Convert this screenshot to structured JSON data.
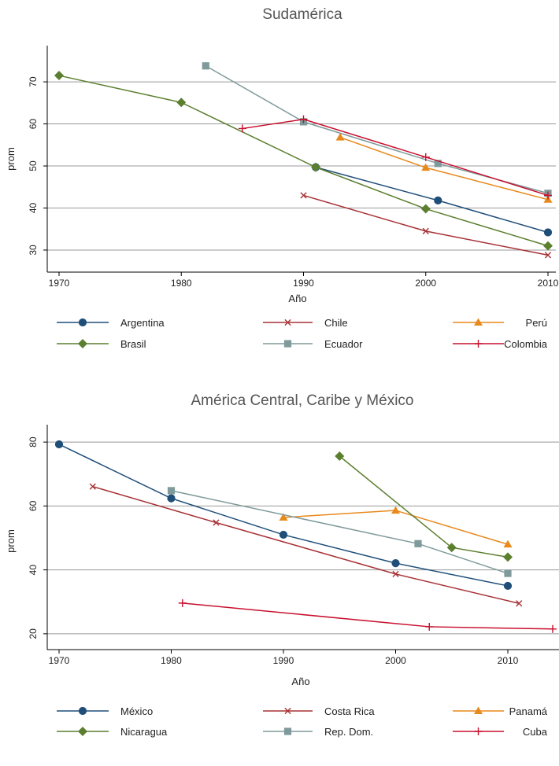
{
  "chart_data": [
    {
      "type": "line",
      "title": "Sudamérica",
      "xlabel": "Año",
      "ylabel": "prom",
      "xlim": [
        1970,
        2010
      ],
      "ylim": [
        27,
        76
      ],
      "xticks": [
        1970,
        1980,
        1990,
        2000,
        2010
      ],
      "yticks": [
        30,
        40,
        50,
        60,
        70
      ],
      "grid": "horizontal",
      "legend_position": "bottom",
      "series": [
        {
          "name": "Argentina",
          "color": "#1f4e79",
          "marker": "circle",
          "x": [
            1991,
            2001,
            2010
          ],
          "y": [
            49.7,
            41.8,
            34.2
          ]
        },
        {
          "name": "Chile",
          "color": "#a83236",
          "marker": "x",
          "x": [
            1990,
            2000,
            2010
          ],
          "y": [
            43.0,
            34.5,
            28.8
          ]
        },
        {
          "name": "Perú",
          "color": "#e8891c",
          "marker": "triangle",
          "x": [
            1993,
            2000,
            2010
          ],
          "y": [
            56.8,
            49.6,
            42.0
          ]
        },
        {
          "name": "Brasil",
          "color": "#5b7f2e",
          "marker": "diamond",
          "x": [
            1970,
            1980,
            1991,
            2000,
            2010
          ],
          "y": [
            71.5,
            65.1,
            49.7,
            39.8,
            31.0
          ]
        },
        {
          "name": "Ecuador",
          "color": "#7f9a9b",
          "marker": "square",
          "x": [
            1982,
            1990,
            2001,
            2010
          ],
          "y": [
            73.8,
            60.5,
            50.6,
            43.5
          ]
        },
        {
          "name": "Colombia",
          "color": "#c8102e",
          "marker": "plus",
          "x": [
            1985,
            1990,
            2000,
            2010
          ],
          "y": [
            58.9,
            61.1,
            52.1,
            43.0
          ]
        }
      ]
    },
    {
      "type": "line",
      "title": "América Central, Caribe y México",
      "xlabel": "Año",
      "ylabel": "prom",
      "xlim": [
        1970,
        2014
      ],
      "ylim": [
        18,
        82
      ],
      "xticks": [
        1970,
        1980,
        1990,
        2000,
        2010
      ],
      "yticks": [
        20,
        40,
        60,
        80
      ],
      "grid": "horizontal",
      "legend_position": "bottom",
      "series": [
        {
          "name": "México",
          "color": "#1f4e79",
          "marker": "circle",
          "x": [
            1970,
            1980,
            1990,
            2000,
            2010
          ],
          "y": [
            79.3,
            62.4,
            51.0,
            42.1,
            35.0
          ]
        },
        {
          "name": "Costa Rica",
          "color": "#a83236",
          "marker": "x",
          "x": [
            1973,
            1984,
            2000,
            2011
          ],
          "y": [
            66.1,
            54.8,
            38.7,
            29.5
          ]
        },
        {
          "name": "Panamá",
          "color": "#e8891c",
          "marker": "triangle",
          "x": [
            1990,
            2000,
            2010
          ],
          "y": [
            56.4,
            58.6,
            48.0
          ]
        },
        {
          "name": "Nicaragua",
          "color": "#5b7f2e",
          "marker": "diamond",
          "x": [
            1995,
            2005,
            2010
          ],
          "y": [
            75.6,
            47.0,
            44.0
          ]
        },
        {
          "name": "Rep. Dom.",
          "color": "#7f9a9b",
          "marker": "square",
          "x": [
            1980,
            2002,
            2010
          ],
          "y": [
            64.8,
            48.2,
            38.9
          ]
        },
        {
          "name": "Cuba",
          "color": "#c8102e",
          "marker": "plus",
          "x": [
            1981,
            2003,
            2014
          ],
          "y": [
            29.6,
            22.2,
            21.5
          ]
        }
      ]
    }
  ]
}
